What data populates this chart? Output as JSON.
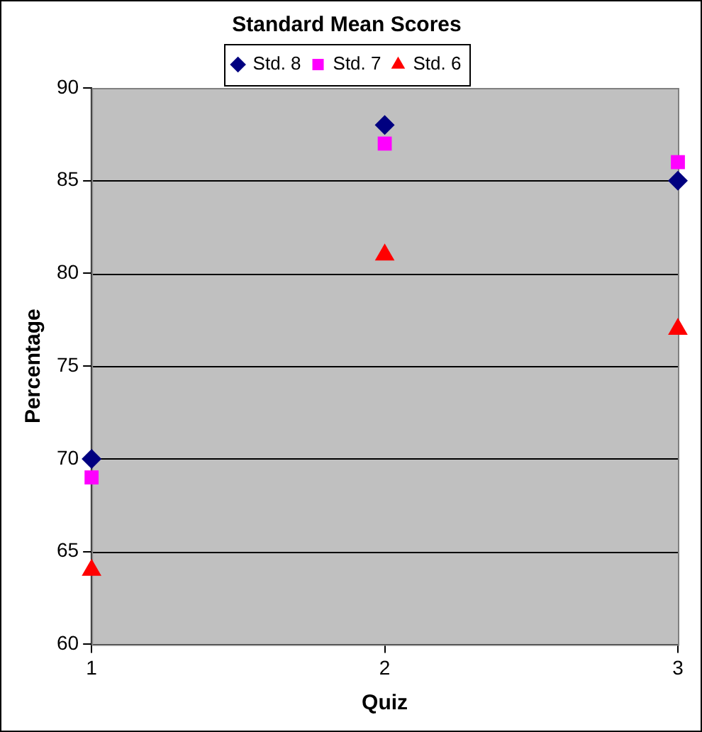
{
  "chart_data": {
    "type": "scatter",
    "title": "Standard Mean Scores",
    "xlabel": "Quiz",
    "ylabel": "Percentage",
    "x": [
      1,
      2,
      3
    ],
    "series": [
      {
        "name": "Std. 8",
        "color": "#000080",
        "marker": "diamond",
        "values": [
          70,
          88,
          85
        ]
      },
      {
        "name": "Std. 7",
        "color": "#ff00ff",
        "marker": "square",
        "values": [
          69,
          87,
          86
        ]
      },
      {
        "name": "Std. 6",
        "color": "#ff0000",
        "marker": "triangle",
        "values": [
          64,
          81,
          77
        ]
      }
    ],
    "xlim": [
      1,
      3
    ],
    "xticks": [
      1,
      2,
      3
    ],
    "ylim": [
      60,
      90
    ],
    "yticks": [
      60,
      65,
      70,
      75,
      80,
      85,
      90
    ],
    "grid": "y",
    "legend": "top"
  }
}
